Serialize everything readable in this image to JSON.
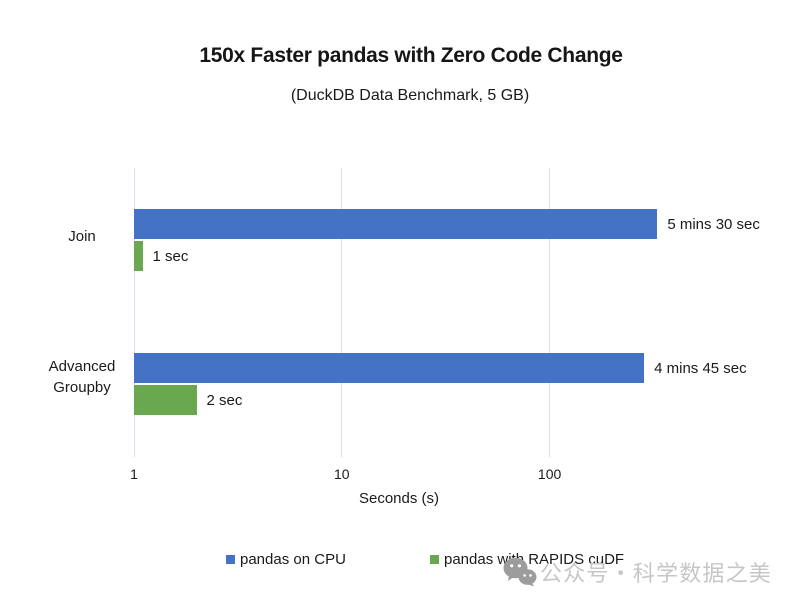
{
  "title": "150x Faster pandas with Zero Code Change",
  "subtitle": "(DuckDB Data Benchmark, 5 GB)",
  "chart_data": {
    "type": "bar",
    "orientation": "horizontal",
    "x_scale": "log",
    "title": "150x Faster pandas with Zero Code Change",
    "subtitle": "(DuckDB Data Benchmark, 5 GB)",
    "xlabel": "Seconds (s)",
    "x_ticks": [
      1,
      10,
      100
    ],
    "xlim": [
      1,
      1000
    ],
    "grid": "vertical",
    "legend_position": "bottom",
    "categories": [
      "Join",
      "Advanced Groupby"
    ],
    "series": [
      {
        "name": "pandas on CPU",
        "color": "#4472C4",
        "values_seconds": [
          330,
          285
        ],
        "value_labels": [
          "5 mins 30 sec",
          "4 mins 45 sec"
        ]
      },
      {
        "name": "pandas with RAPIDS cuDF",
        "color": "#6AA84F",
        "values_seconds": [
          1,
          2
        ],
        "value_labels": [
          "1 sec",
          "2 sec"
        ]
      }
    ]
  },
  "legend": {
    "items": [
      {
        "label": "pandas on CPU",
        "color": "#4472C4"
      },
      {
        "label": "pandas with RAPIDS cuDF",
        "color": "#6AA84F"
      }
    ]
  },
  "watermark": {
    "icon": "wechat-icon",
    "text": "公众号・科学数据之美",
    "text_color": "#c6c6c6",
    "icon_color": "#9c9c9c"
  },
  "colors": {
    "bar_blue": "#4472C4",
    "bar_green": "#6AA84F",
    "gridline": "#d6e2f2",
    "text": "#1a1a1a"
  }
}
